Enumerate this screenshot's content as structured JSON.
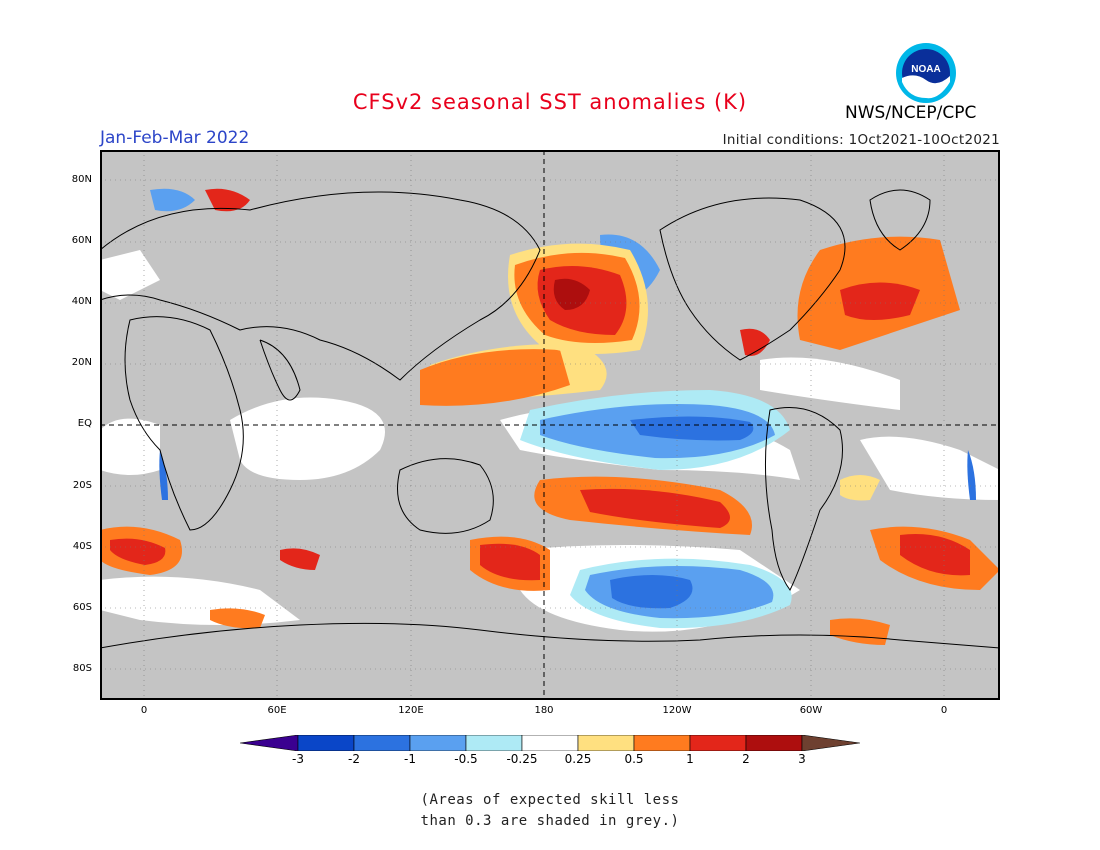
{
  "header": {
    "title": "CFSv2 seasonal SST anomalies (K)",
    "season": "Jan-Feb-Mar 2022",
    "initial_conditions": "Initial conditions: 1Oct2021-10Oct2021",
    "agency": "NWS/NCEP/CPC",
    "logo_text": "NOAA"
  },
  "map": {
    "lat_labels": [
      "80N",
      "60N",
      "40N",
      "20N",
      "EQ",
      "20S",
      "40S",
      "60S",
      "80S"
    ],
    "lon_labels": [
      "0",
      "60E",
      "120E",
      "180",
      "120W",
      "60W",
      "0"
    ],
    "colors": {
      "land": "#c0c0c0",
      "ocean_neutral": "#ffffff",
      "skill_grey": "#c4c4c4"
    },
    "regions": [
      {
        "kind": "warm",
        "level": "0.5 to 1",
        "desc": "North Pacific"
      },
      {
        "kind": "warm",
        "level": "1 to 2",
        "desc": "North Pacific core"
      },
      {
        "kind": "cool",
        "level": "-1 to -0.5",
        "desc": "Equatorial Pacific La Nina"
      },
      {
        "kind": "warm",
        "level": "1 to 2",
        "desc": "South Pacific"
      },
      {
        "kind": "cool",
        "level": "-2 to -1",
        "desc": "Southern Ocean Pacific sector"
      }
    ]
  },
  "colorbar": {
    "labels": [
      "-3",
      "-2",
      "-1",
      "-0.5",
      "-0.25",
      "0.25",
      "0.5",
      "1",
      "2",
      "3"
    ],
    "colors": [
      "#3a0090",
      "#0a46c8",
      "#2c72e0",
      "#5aa0f0",
      "#aeeaf5",
      "#ffffff",
      "#ffe080",
      "#ff7b1f",
      "#e3261a",
      "#ad0e0e",
      "#6e4030"
    ]
  },
  "note": {
    "line1": "(Areas of expected skill less",
    "line2": "than 0.3 are shaded in grey.)"
  }
}
